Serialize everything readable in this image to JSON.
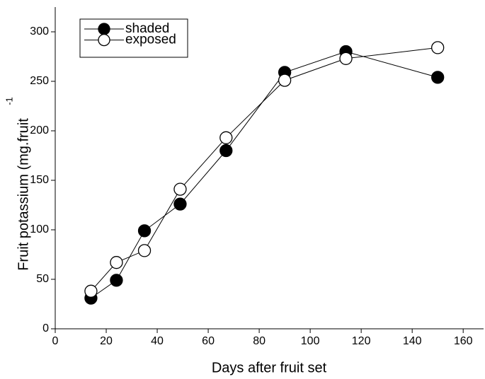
{
  "chart_data": {
    "type": "line",
    "x_label": "Days after fruit set",
    "y_label": "Fruit potassium (mg.fruit",
    "y_label_sup": "-1",
    "x": [
      14,
      24,
      35,
      49,
      67,
      90,
      114,
      150
    ],
    "series": [
      {
        "name": "shaded",
        "color": "#000000",
        "marker": "filled",
        "values": [
          31,
          49,
          99,
          126,
          180,
          259,
          280,
          254
        ]
      },
      {
        "name": "exposed",
        "color": "#000000",
        "marker": "open",
        "values": [
          38,
          67,
          79,
          141,
          193,
          251,
          273,
          284
        ]
      }
    ],
    "xlim": [
      0,
      168
    ],
    "xticks": [
      0,
      20,
      40,
      60,
      80,
      100,
      120,
      140,
      160
    ],
    "ylim": [
      0,
      325
    ],
    "yticks": [
      0,
      50,
      100,
      150,
      200,
      250,
      300
    ],
    "grid": false,
    "legend": "top-left"
  }
}
